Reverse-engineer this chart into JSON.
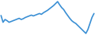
{
  "values": [
    55,
    38,
    45,
    42,
    38,
    40,
    42,
    44,
    46,
    48,
    45,
    47,
    50,
    52,
    54,
    56,
    54,
    56,
    58,
    60,
    58,
    62,
    65,
    68,
    72,
    76,
    80,
    85,
    90,
    82,
    75,
    70,
    62,
    55,
    48,
    42,
    38,
    35,
    30,
    25,
    20,
    15,
    10,
    20,
    35,
    50,
    60
  ],
  "line_color": "#3a8fd4",
  "bg_color": "#ffffff",
  "linewidth": 1.2
}
